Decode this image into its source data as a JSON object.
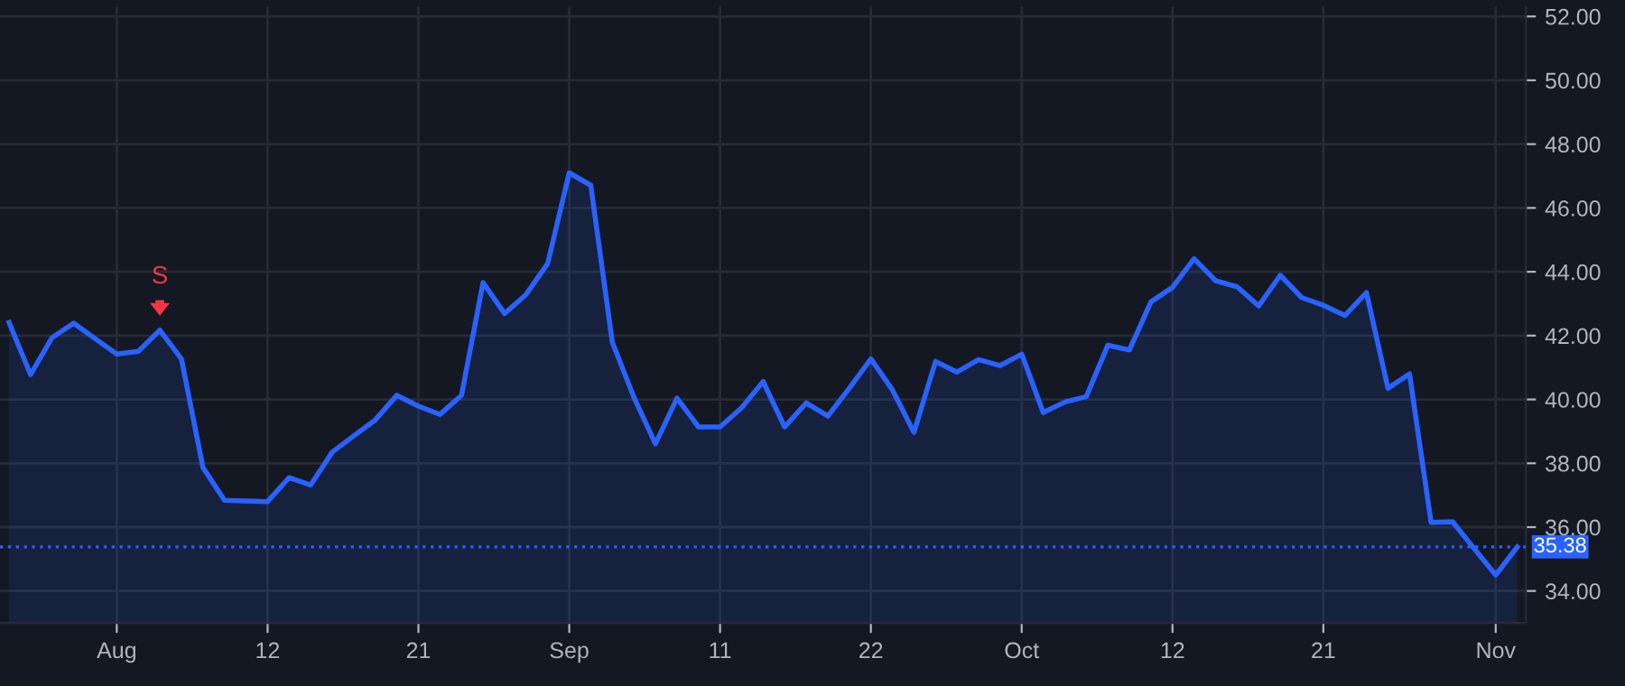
{
  "chart_data": {
    "type": "area",
    "categories": [
      null,
      null,
      null,
      null,
      null,
      "Aug",
      null,
      null,
      null,
      null,
      null,
      null,
      "12",
      null,
      null,
      null,
      null,
      null,
      null,
      "21",
      null,
      null,
      null,
      null,
      null,
      null,
      "Sep",
      null,
      null,
      null,
      null,
      null,
      null,
      "11",
      null,
      null,
      null,
      null,
      null,
      null,
      "22",
      null,
      null,
      null,
      null,
      null,
      null,
      "Oct",
      null,
      null,
      null,
      null,
      null,
      null,
      "12",
      null,
      null,
      null,
      null,
      null,
      null,
      "21",
      null,
      null,
      null,
      null,
      null,
      null,
      null,
      "Nov",
      null
    ],
    "series": [
      {
        "color": "#2962ff",
        "values": [
          42.41,
          40.78,
          41.94,
          42.39,
          41.9,
          41.42,
          41.51,
          42.17,
          41.27,
          37.87,
          36.84,
          36.82,
          36.8,
          37.55,
          37.32,
          38.35,
          38.86,
          39.36,
          40.13,
          39.79,
          39.53,
          40.13,
          43.66,
          42.69,
          43.29,
          44.26,
          47.1,
          46.71,
          41.79,
          40.07,
          38.61,
          40.04,
          39.14,
          39.14,
          39.74,
          40.56,
          39.14,
          39.89,
          39.48,
          40.35,
          41.27,
          40.3,
          38.97,
          41.19,
          40.86,
          41.25,
          41.06,
          41.42,
          39.59,
          39.92,
          40.09,
          41.7,
          41.55,
          43.06,
          43.51,
          44.41,
          43.72,
          43.53,
          42.93,
          43.89,
          43.19,
          42.95,
          42.63,
          43.35,
          40.35,
          40.8,
          36.15,
          36.17,
          35.33,
          34.5,
          35.38
        ]
      }
    ],
    "ylim": [
      33,
      52.3
    ],
    "yticks": [
      {
        "value": 34,
        "label": "34.00"
      },
      {
        "value": 36,
        "label": "36.00"
      },
      {
        "value": 38,
        "label": "38.00"
      },
      {
        "value": 40,
        "label": "40.00"
      },
      {
        "value": 42,
        "label": "42.00"
      },
      {
        "value": 44,
        "label": "44.00"
      },
      {
        "value": 46,
        "label": "46.00"
      },
      {
        "value": 48,
        "label": "48.00"
      },
      {
        "value": 50,
        "label": "50.00"
      },
      {
        "value": 52,
        "label": "52.00"
      }
    ],
    "ref_lines": [
      {
        "axis": "y",
        "value": 35.38,
        "label": "35.38",
        "color": "#2962ff",
        "line_style": "dotted"
      }
    ],
    "annotations": [
      {
        "text": "S",
        "y": 42.17
      }
    ],
    "grid": true
  }
}
